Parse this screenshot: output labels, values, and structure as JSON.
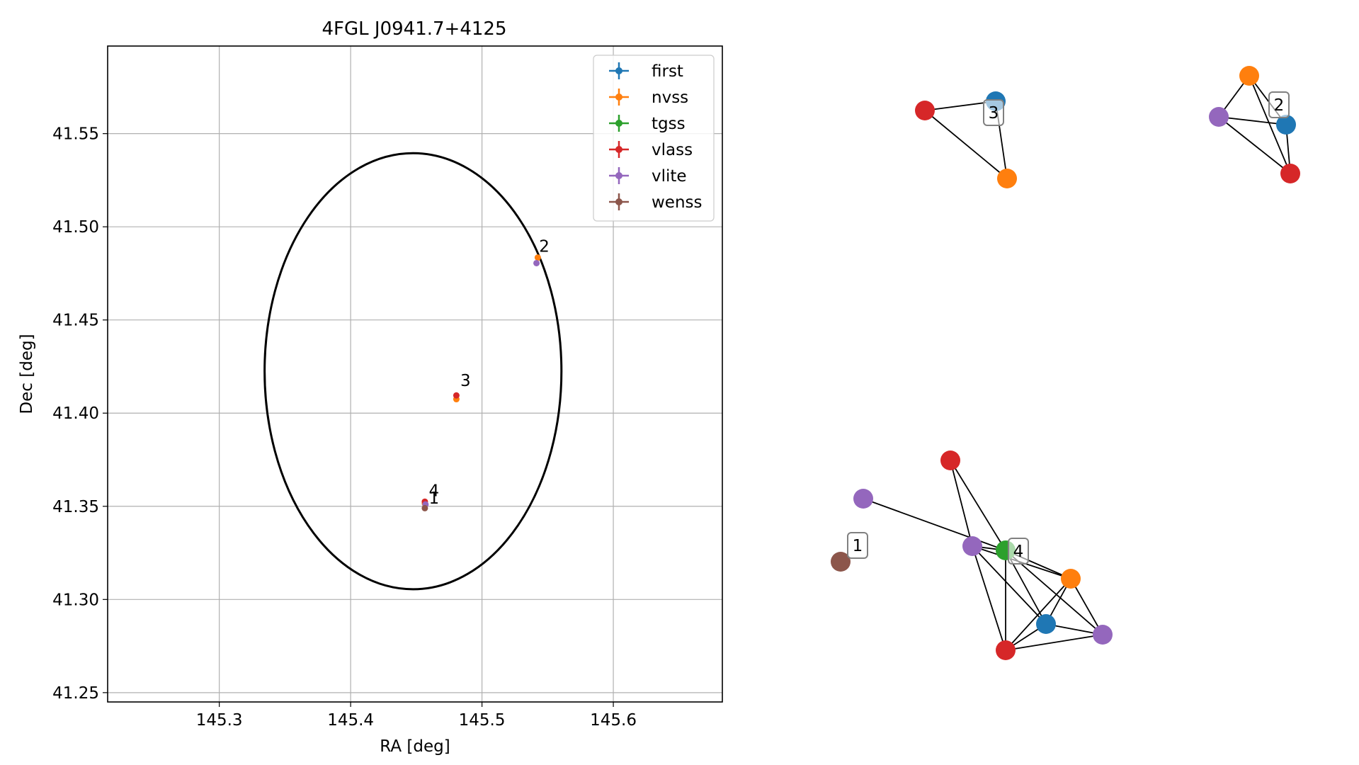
{
  "chart_data": [
    {
      "type": "scatter",
      "title": "4FGL J0941.7+4125",
      "xlabel": "RA [deg]",
      "ylabel": "Dec [deg]",
      "xlim": [
        145.215,
        145.683
      ],
      "ylim": [
        41.245,
        41.597
      ],
      "xticks": [
        145.3,
        145.4,
        145.5,
        145.6
      ],
      "xtick_labels": [
        "145.3",
        "145.4",
        "145.5",
        "145.6"
      ],
      "yticks": [
        41.25,
        41.3,
        41.35,
        41.4,
        41.45,
        41.5,
        41.55
      ],
      "ytick_labels": [
        "41.25",
        "41.30",
        "41.35",
        "41.40",
        "41.45",
        "41.50",
        "41.55"
      ],
      "grid": true,
      "legend_position": "top-right",
      "ellipse": {
        "center": [
          145.4475,
          41.4225
        ],
        "ra_halfwidth": 0.113,
        "dec_halfheight": 0.117,
        "color": "#000000"
      },
      "series": [
        {
          "name": "first",
          "color": "#1f77b4",
          "points": []
        },
        {
          "name": "nvss",
          "color": "#ff7f0e",
          "points": [
            [
              145.5425,
              41.4835
            ],
            [
              145.4805,
              41.4075
            ],
            [
              145.4565,
              41.3515
            ]
          ]
        },
        {
          "name": "tgss",
          "color": "#2ca02c",
          "points": []
        },
        {
          "name": "vlass",
          "color": "#d62728",
          "points": [
            [
              145.4805,
              41.4095
            ],
            [
              145.4565,
              41.3525
            ]
          ]
        },
        {
          "name": "vlite",
          "color": "#9467bd",
          "points": [
            [
              145.5415,
              41.4805
            ],
            [
              145.457,
              41.351
            ]
          ]
        },
        {
          "name": "wenss",
          "color": "#8c564b",
          "points": [
            [
              145.4565,
              41.349
            ]
          ]
        }
      ],
      "annotations": [
        {
          "text": "2",
          "x": 145.5435,
          "y": 41.4865
        },
        {
          "text": "3",
          "x": 145.4835,
          "y": 41.4145
        },
        {
          "text": "4",
          "x": 145.4595,
          "y": 41.3555
        },
        {
          "text": "1",
          "x": 145.4595,
          "y": 41.3515
        }
      ]
    },
    {
      "type": "network",
      "groups": [
        {
          "label": "3",
          "nodes": [
            {
              "id": "a",
              "color": "#1f77b4"
            },
            {
              "id": "b",
              "color": "#d62728"
            },
            {
              "id": "c",
              "color": "#ff7f0e"
            }
          ],
          "edges": [
            [
              "a",
              "b"
            ],
            [
              "a",
              "c"
            ],
            [
              "b",
              "c"
            ]
          ]
        },
        {
          "label": "2",
          "nodes": [
            {
              "id": "a",
              "color": "#ff7f0e"
            },
            {
              "id": "b",
              "color": "#9467bd"
            },
            {
              "id": "c",
              "color": "#1f77b4"
            },
            {
              "id": "d",
              "color": "#d62728"
            }
          ],
          "edges": [
            [
              "a",
              "b"
            ],
            [
              "a",
              "c"
            ],
            [
              "a",
              "d"
            ],
            [
              "b",
              "c"
            ],
            [
              "b",
              "d"
            ],
            [
              "c",
              "d"
            ]
          ]
        },
        {
          "label": "1",
          "nodes": [
            {
              "id": "a",
              "color": "#8c564b"
            }
          ],
          "edges": []
        },
        {
          "label": "4",
          "nodes": [
            {
              "id": "r1",
              "color": "#d62728"
            },
            {
              "id": "v1",
              "color": "#9467bd"
            },
            {
              "id": "v2",
              "color": "#9467bd"
            },
            {
              "id": "g",
              "color": "#2ca02c"
            },
            {
              "id": "o",
              "color": "#ff7f0e"
            },
            {
              "id": "b",
              "color": "#1f77b4"
            },
            {
              "id": "v3",
              "color": "#9467bd"
            },
            {
              "id": "r2",
              "color": "#d62728"
            }
          ],
          "edges": [
            [
              "r1",
              "v2"
            ],
            [
              "r1",
              "g"
            ],
            [
              "v1",
              "g"
            ],
            [
              "v2",
              "g"
            ],
            [
              "v2",
              "o"
            ],
            [
              "v2",
              "b"
            ],
            [
              "v2",
              "r2"
            ],
            [
              "g",
              "o"
            ],
            [
              "g",
              "b"
            ],
            [
              "g",
              "v3"
            ],
            [
              "g",
              "r2"
            ],
            [
              "o",
              "v3"
            ],
            [
              "o",
              "b"
            ],
            [
              "o",
              "r2"
            ],
            [
              "b",
              "v3"
            ],
            [
              "b",
              "r2"
            ],
            [
              "r2",
              "v3"
            ]
          ]
        }
      ]
    }
  ]
}
